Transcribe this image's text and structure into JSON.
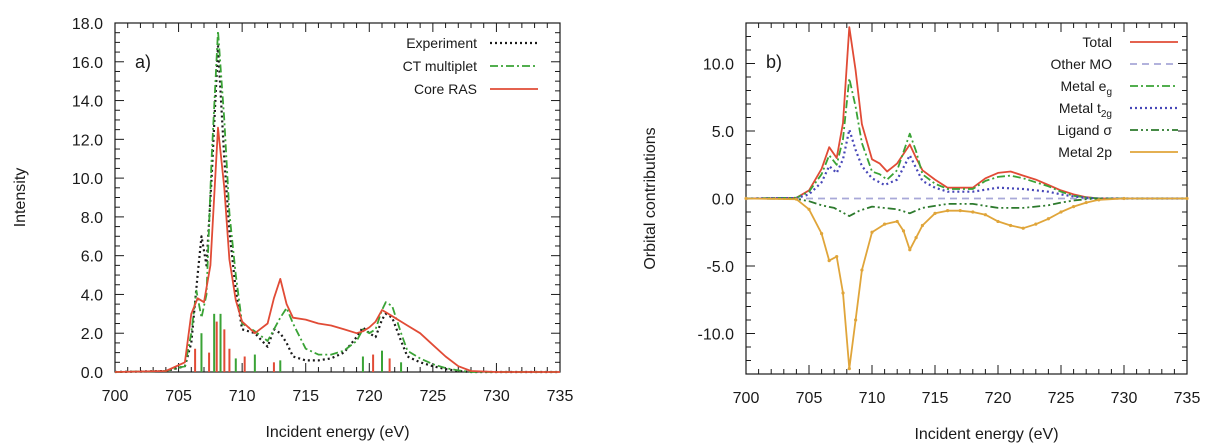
{
  "chart_data": [
    {
      "panel_label": "a)",
      "type": "line",
      "xlabel": "Incident energy (eV)",
      "ylabel": "Intensity",
      "xlim": [
        700,
        735
      ],
      "ylim": [
        0,
        18
      ],
      "xticks": [
        "700",
        "705",
        "710",
        "715",
        "720",
        "725",
        "730",
        "735"
      ],
      "yticks": [
        "0.0",
        "2.0",
        "4.0",
        "6.0",
        "8.0",
        "10.0",
        "12.0",
        "14.0",
        "16.0",
        "18.0"
      ],
      "legend_position": "top-right",
      "series": [
        {
          "name": "Experiment",
          "color": "#1a1a1a",
          "style": "dotted",
          "x": [
            700,
            704,
            705.5,
            706,
            706.5,
            706.8,
            707.2,
            707.6,
            708.1,
            708.6,
            709,
            709.5,
            710,
            711,
            712,
            712.5,
            713,
            713.5,
            714,
            715,
            716,
            717,
            718,
            719,
            719.5,
            720,
            720.5,
            721,
            721.3,
            721.8,
            722.5,
            723,
            724,
            725,
            726,
            727,
            728,
            730,
            735
          ],
          "y": [
            0,
            0.05,
            0.3,
            1.5,
            5.0,
            7.0,
            5.5,
            10.0,
            16.8,
            11.0,
            7.3,
            4.2,
            2.2,
            2.0,
            1.3,
            2.2,
            2.0,
            1.5,
            0.8,
            0.6,
            0.6,
            0.7,
            1.0,
            1.8,
            2.3,
            2.0,
            1.8,
            2.7,
            3.0,
            2.8,
            1.6,
            0.8,
            0.5,
            0.3,
            0.15,
            0.05,
            0,
            0,
            0
          ]
        },
        {
          "name": "CT multiplet",
          "color": "#3aa336",
          "style": "dashdot",
          "x": [
            700,
            704,
            705.5,
            706,
            706.4,
            706.8,
            707.2,
            707.6,
            708.1,
            708.6,
            709,
            709.5,
            710,
            711,
            712,
            713,
            713.5,
            714,
            715,
            716,
            717,
            718,
            719,
            719.5,
            720,
            720.5,
            721,
            721.3,
            721.8,
            722.5,
            723,
            724,
            725,
            726,
            727,
            728,
            730,
            735
          ],
          "y": [
            0,
            0.05,
            0.3,
            2.0,
            4.2,
            2.8,
            4.0,
            11.0,
            17.6,
            13.0,
            8.2,
            5.0,
            2.5,
            2.1,
            1.6,
            2.8,
            3.3,
            2.5,
            1.2,
            0.9,
            0.9,
            1.1,
            1.6,
            2.2,
            2.0,
            2.2,
            3.2,
            3.6,
            3.4,
            2.0,
            1.1,
            0.7,
            0.4,
            0.2,
            0.08,
            0,
            0,
            0
          ]
        },
        {
          "name": "Core RAS",
          "color": "#e14b36",
          "style": "solid",
          "x": [
            700,
            704,
            705.5,
            706,
            706.5,
            707,
            707.5,
            708.1,
            708.6,
            709,
            709.5,
            710,
            711,
            712,
            712.5,
            713,
            713.5,
            714,
            715,
            716,
            717,
            718,
            719,
            719.5,
            720,
            720.5,
            721,
            721.5,
            722,
            722.5,
            723,
            724,
            725,
            726,
            727,
            728,
            730,
            735
          ],
          "y": [
            0,
            0.05,
            0.5,
            3.0,
            3.8,
            3.6,
            5.5,
            12.6,
            9.5,
            5.8,
            3.7,
            2.6,
            2.0,
            2.5,
            3.8,
            4.8,
            3.5,
            2.8,
            2.7,
            2.5,
            2.4,
            2.2,
            2.0,
            2.1,
            2.3,
            2.6,
            3.2,
            3.0,
            2.8,
            2.6,
            2.4,
            2.0,
            1.4,
            0.8,
            0.3,
            0.05,
            0,
            0
          ]
        }
      ]
    },
    {
      "panel_label": "b)",
      "type": "line",
      "xlabel": "Incident energy (eV)",
      "ylabel": "Orbital contributions",
      "xlim": [
        700,
        735
      ],
      "ylim": [
        -13,
        13
      ],
      "xticks": [
        "700",
        "705",
        "710",
        "715",
        "720",
        "725",
        "730",
        "735"
      ],
      "yticks": [
        "-10.0",
        "-5.0",
        "0.0",
        "5.0",
        "10.0"
      ],
      "legend_position": "top-right",
      "series": [
        {
          "name": "Total",
          "legend": {
            "base": "Total",
            "sub": ""
          },
          "color": "#e14b36",
          "style": "solid",
          "x": [
            700,
            704,
            705,
            706,
            706.6,
            707.2,
            707.7,
            708.2,
            708.7,
            709.2,
            710,
            710.6,
            711.2,
            712,
            713,
            713.5,
            714,
            715,
            716,
            718,
            719,
            720,
            721,
            722,
            723,
            724,
            725,
            726,
            727,
            728,
            730,
            735
          ],
          "y": [
            0,
            0.05,
            0.6,
            2.2,
            3.8,
            3.0,
            5.6,
            12.7,
            9.5,
            5.5,
            2.9,
            2.6,
            2.0,
            2.6,
            4.0,
            3.0,
            2.1,
            1.4,
            0.8,
            0.8,
            1.5,
            1.9,
            2.0,
            1.7,
            1.4,
            1.0,
            0.6,
            0.3,
            0.1,
            0,
            0,
            0
          ]
        },
        {
          "name": "Other MO",
          "legend": {
            "base": "Other MO",
            "sub": ""
          },
          "color": "#a8a8d8",
          "style": "dashed",
          "x": [
            700,
            735
          ],
          "y": [
            0,
            0
          ]
        },
        {
          "name": "Metal eg",
          "legend": {
            "base": "Metal e",
            "sub": "g"
          },
          "color": "#3aa336",
          "style": "dashdot",
          "x": [
            700,
            704,
            705,
            706,
            706.6,
            707.2,
            707.7,
            708.2,
            708.7,
            709.2,
            710,
            710.6,
            711.2,
            712,
            713,
            713.5,
            714,
            715,
            716,
            718,
            719,
            720,
            721,
            722,
            723,
            724,
            725,
            726,
            727,
            728,
            730,
            735
          ],
          "y": [
            0,
            0.05,
            0.5,
            1.8,
            3.2,
            2.5,
            4.4,
            8.9,
            6.8,
            4.1,
            2.0,
            1.8,
            1.4,
            2.1,
            4.8,
            3.5,
            1.8,
            1.1,
            0.7,
            0.7,
            1.3,
            1.6,
            1.7,
            1.5,
            1.2,
            0.9,
            0.5,
            0.2,
            0.08,
            0,
            0,
            0
          ]
        },
        {
          "name": "Metal t2g",
          "legend": {
            "base": "Metal t",
            "sub": "2g"
          },
          "color": "#4747b8",
          "style": "dotted",
          "x": [
            700,
            704,
            705,
            706,
            706.6,
            707.2,
            707.7,
            708.2,
            708.7,
            709.2,
            710,
            711,
            712,
            713,
            714,
            715,
            716,
            718,
            720,
            722,
            724,
            725,
            726,
            727,
            728,
            730,
            735
          ],
          "y": [
            0,
            0.03,
            0.3,
            1.2,
            2.4,
            1.9,
            2.9,
            5.1,
            3.6,
            2.4,
            1.5,
            1.0,
            1.4,
            3.2,
            1.3,
            0.8,
            0.5,
            0.5,
            0.8,
            0.7,
            0.5,
            0.3,
            0.15,
            0.05,
            0,
            0,
            0
          ]
        },
        {
          "name": "Ligand σ",
          "legend": {
            "base": "Ligand σ",
            "sub": ""
          },
          "color": "#2d7a2d",
          "style": "dashdotdot",
          "x": [
            700,
            704,
            705,
            706,
            707,
            708.2,
            709,
            710,
            712,
            713,
            714,
            716,
            718,
            720,
            722,
            724,
            725,
            726,
            727,
            728,
            730,
            735
          ],
          "y": [
            0,
            -0.03,
            -0.2,
            -0.5,
            -0.7,
            -1.3,
            -0.9,
            -0.6,
            -0.8,
            -1.1,
            -0.7,
            -0.4,
            -0.4,
            -0.7,
            -0.7,
            -0.5,
            -0.3,
            -0.15,
            -0.05,
            0,
            0,
            0
          ]
        },
        {
          "name": "Metal 2p",
          "legend": {
            "base": "Metal 2p",
            "sub": ""
          },
          "color": "#e0a53a",
          "style": "solid-points",
          "x": [
            700,
            704,
            705,
            706,
            706.6,
            707.2,
            707.7,
            708.2,
            708.7,
            709.2,
            710,
            711,
            712,
            712.5,
            713,
            713.5,
            714,
            715,
            716,
            717,
            718,
            719,
            720,
            721,
            722,
            723,
            724,
            725,
            726,
            727,
            728,
            730,
            735
          ],
          "y": [
            0,
            -0.05,
            -0.8,
            -2.6,
            -4.6,
            -4.3,
            -7.0,
            -12.6,
            -9.0,
            -5.3,
            -2.5,
            -1.9,
            -1.7,
            -2.4,
            -3.8,
            -2.9,
            -2.0,
            -1.1,
            -0.9,
            -0.9,
            -1.0,
            -1.2,
            -1.7,
            -2.0,
            -2.2,
            -1.9,
            -1.5,
            -1.0,
            -0.6,
            -0.3,
            -0.1,
            0,
            0
          ]
        }
      ]
    }
  ]
}
